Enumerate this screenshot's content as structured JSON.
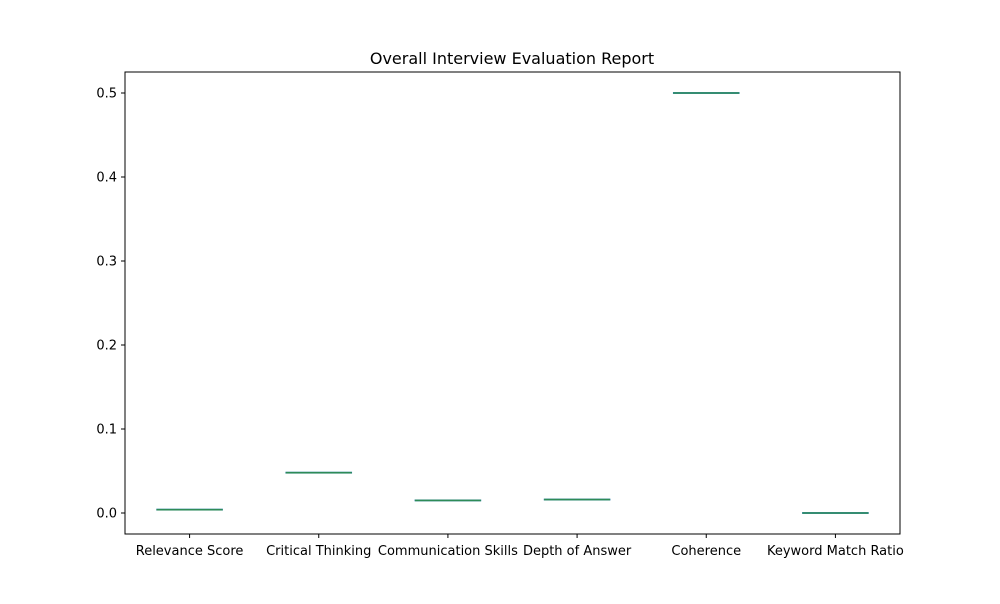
{
  "chart_data": {
    "type": "box",
    "title": "Overall Interview Evaluation Report",
    "xlabel": "",
    "ylabel": "",
    "categories": [
      "Relevance Score",
      "Critical Thinking",
      "Communication Skills",
      "Depth of Answer",
      "Coherence",
      "Keyword Match Ratio"
    ],
    "values": [
      0.004,
      0.048,
      0.015,
      0.016,
      0.5,
      0.0
    ],
    "ylim": [
      -0.025,
      0.525
    ],
    "yticks": [
      0.0,
      0.1,
      0.2,
      0.3,
      0.4,
      0.5
    ],
    "ytick_labels": [
      "0.0",
      "0.1",
      "0.2",
      "0.3",
      "0.4",
      "0.5"
    ],
    "grid": false,
    "colors": {
      "median_line": "#2e8b57",
      "box": "#1f77b4",
      "axes": "#000000"
    }
  }
}
